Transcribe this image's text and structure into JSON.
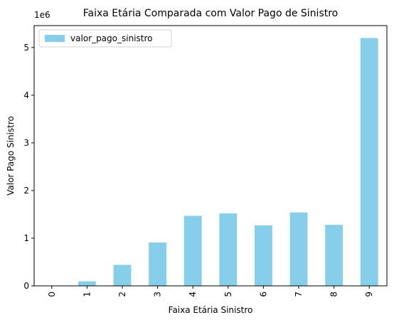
{
  "chart_data": {
    "type": "bar",
    "title": "Faixa Etária Comparada com Valor Pago de Sinistro",
    "xlabel": "Faixa Etária Sinistro",
    "ylabel": "Valor Pago Sinistro",
    "offset_label": "1e6",
    "categories": [
      "0",
      "1",
      "2",
      "3",
      "4",
      "5",
      "6",
      "7",
      "8",
      "9"
    ],
    "series": [
      {
        "name": "valor_pago_sinistro",
        "color": "#87ceeb",
        "values": [
          0,
          95000,
          440000,
          910000,
          1470000,
          1520000,
          1270000,
          1540000,
          1280000,
          5200000
        ]
      }
    ],
    "ylim": [
      0,
      5460000
    ],
    "yticks": [
      0,
      1000000,
      2000000,
      3000000,
      4000000,
      5000000
    ],
    "ytick_labels": [
      "0",
      "1",
      "2",
      "3",
      "4",
      "5"
    ],
    "legend_position": "top-left",
    "grid": false
  }
}
